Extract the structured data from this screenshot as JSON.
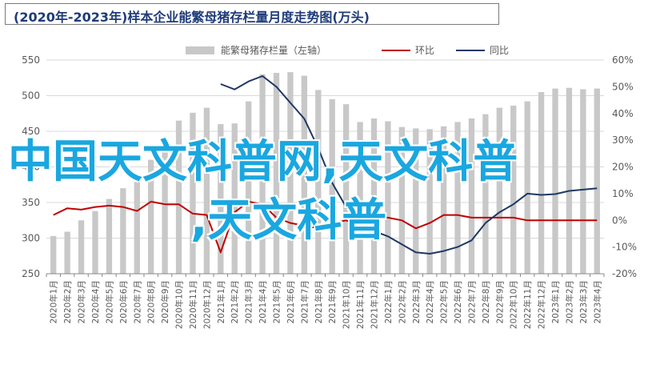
{
  "title": "(2020年-2023年)样本企业能繁母猪存栏量月度走势图(万头)",
  "overlay": {
    "line1": "中国天文科普网,天文科普",
    "line2": ",天文科普"
  },
  "chart_data": {
    "type": "bar",
    "categories": [
      "2020年1月",
      "2020年2月",
      "2020年3月",
      "2020年4月",
      "2020年5月",
      "2020年6月",
      "2020年7月",
      "2020年8月",
      "2020年9月",
      "2020年10月",
      "2020年11月",
      "2020年12月",
      "2021年1月",
      "2021年2月",
      "2021年3月",
      "2021年4月",
      "2021年5月",
      "2021年6月",
      "2021年7月",
      "2021年8月",
      "2021年9月",
      "2021年10月",
      "2021年11月",
      "2021年12月",
      "2022年1月",
      "2022年2月",
      "2022年3月",
      "2022年4月",
      "2022年5月",
      "2022年6月",
      "2022年7月",
      "2022年8月",
      "2022年9月",
      "2022年10月",
      "2022年11月",
      "2022年12月",
      "2023年1月",
      "2023年2月",
      "2023年3月",
      "2023年4月"
    ],
    "y_left_ticks": [
      "250",
      "300",
      "350",
      "400",
      "450",
      "500",
      "550"
    ],
    "y_right_ticks": [
      "-20%",
      "-10%",
      "0%",
      "10%",
      "20%",
      "30%",
      "40%",
      "50%",
      "60%"
    ],
    "ylim_left": [
      250,
      550
    ],
    "ylim_right": [
      -20,
      60
    ],
    "legend_position": "top",
    "series": [
      {
        "name": "能繁母猪存栏量（左轴）",
        "axis": "left",
        "kind": "bar",
        "color": "#c8c8c8",
        "values": [
          303,
          309,
          325,
          338,
          355,
          370,
          390,
          410,
          435,
          465,
          476,
          483,
          460,
          461,
          492,
          530,
          532,
          533,
          528,
          508,
          495,
          488,
          463,
          468,
          464,
          456,
          454,
          453,
          457,
          463,
          468,
          474,
          483,
          486,
          492,
          505,
          510,
          511,
          509,
          510
        ]
      },
      {
        "name": "环比",
        "axis": "right",
        "kind": "line",
        "color": "#c00000",
        "values": [
          2,
          4.5,
          4,
          5,
          5.5,
          5,
          3.5,
          7,
          6,
          6,
          2.5,
          2,
          -12,
          3,
          7,
          6,
          1,
          -1,
          -2,
          -3,
          -1,
          0,
          -2,
          1,
          1,
          0,
          -3,
          -1,
          2,
          2,
          1,
          1,
          1,
          1,
          0,
          0,
          0,
          0,
          0,
          0
        ]
      },
      {
        "name": "同比",
        "axis": "right",
        "kind": "line",
        "color": "#1f3864",
        "values": [
          null,
          null,
          null,
          null,
          null,
          null,
          null,
          null,
          null,
          null,
          null,
          null,
          51,
          49,
          52,
          54,
          50,
          44,
          38,
          27,
          14,
          5,
          -2,
          -4,
          -6,
          -9,
          -12,
          -12.5,
          -11.5,
          -10,
          -7.5,
          -1,
          3,
          6,
          10,
          9.5,
          9.8,
          11,
          11.5,
          12
        ]
      }
    ]
  }
}
